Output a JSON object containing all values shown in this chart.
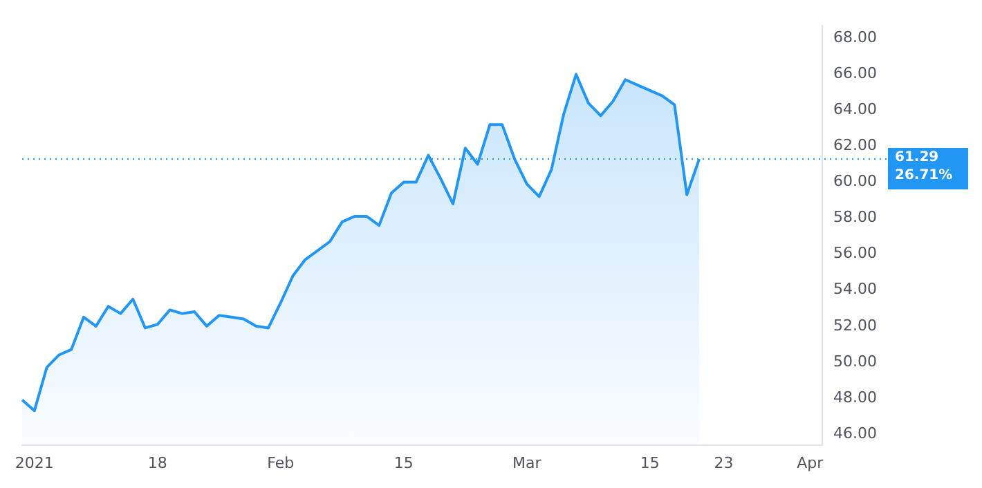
{
  "chart_data": {
    "type": "area",
    "categories": [
      null,
      "2021",
      null,
      null,
      null,
      null,
      null,
      null,
      null,
      null,
      null,
      "18",
      null,
      null,
      null,
      null,
      null,
      null,
      null,
      null,
      null,
      "Feb",
      null,
      null,
      null,
      null,
      null,
      null,
      null,
      null,
      null,
      "15",
      null,
      null,
      null,
      null,
      null,
      null,
      null,
      null,
      null,
      "Mar",
      null,
      null,
      null,
      null,
      null,
      null,
      null,
      null,
      null,
      "15",
      null,
      null,
      null,
      null,
      null,
      "23",
      null,
      null,
      null,
      null,
      null,
      null,
      "Apr",
      null
    ],
    "series": [
      {
        "color": "#2196f3",
        "values": [
          47.9,
          47.3,
          49.7,
          50.4,
          50.7,
          52.5,
          52.0,
          53.1,
          52.7,
          53.5,
          51.9,
          52.1,
          52.9,
          52.7,
          52.8,
          52.0,
          52.6,
          52.5,
          52.4,
          52.0,
          51.9,
          53.3,
          54.8,
          55.7,
          56.2,
          56.7,
          57.8,
          58.1,
          58.1,
          57.6,
          59.4,
          60.0,
          60.0,
          61.5,
          60.2,
          58.8,
          61.9,
          61.0,
          63.2,
          63.2,
          61.3,
          59.9,
          59.2,
          60.7,
          63.8,
          66.0,
          64.4,
          63.7,
          64.5,
          65.7,
          65.4,
          65.1,
          64.8,
          64.3,
          59.3,
          61.29,
          null,
          null,
          null,
          null,
          null,
          null,
          null,
          null,
          null,
          null
        ]
      }
    ],
    "ylim": [
      45.4,
      68.7
    ],
    "yticks": [
      {
        "value": 46,
        "label": "46.00"
      },
      {
        "value": 48,
        "label": "48.00"
      },
      {
        "value": 50,
        "label": "50.00"
      },
      {
        "value": 52,
        "label": "52.00"
      },
      {
        "value": 54,
        "label": "54.00"
      },
      {
        "value": 56,
        "label": "56.00"
      },
      {
        "value": 58,
        "label": "58.00"
      },
      {
        "value": 60,
        "label": "60.00"
      },
      {
        "value": 62,
        "label": "62.00"
      },
      {
        "value": 64,
        "label": "64.00"
      },
      {
        "value": 66,
        "label": "66.00"
      },
      {
        "value": 68,
        "label": "68.00"
      }
    ],
    "ref_lines": [
      {
        "axis": "y",
        "value": 61.29,
        "label": "61.29",
        "color": "#2196f3",
        "line_style": "dotted"
      }
    ],
    "annotations": [
      "26.71%"
    ],
    "grid": false,
    "legend": false,
    "marker": "none",
    "line_style": "solid"
  }
}
